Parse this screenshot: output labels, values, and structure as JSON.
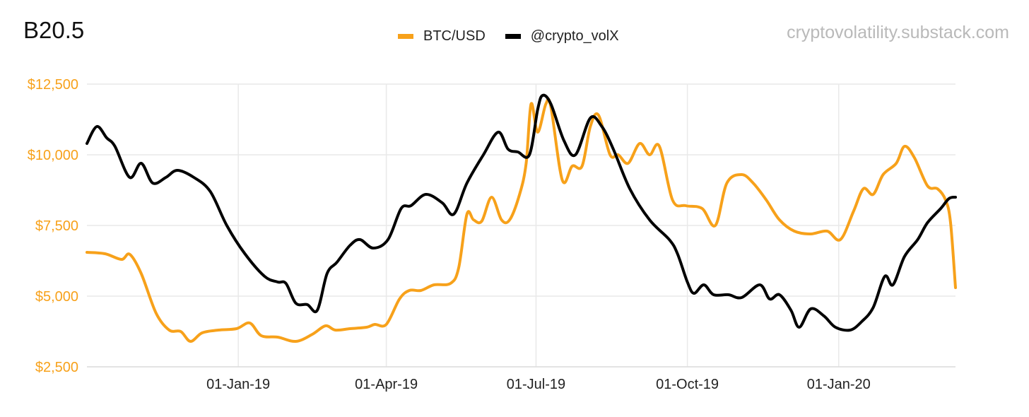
{
  "header": {
    "title": "B20.5",
    "watermark": "cryptovolatility.substack.com"
  },
  "colors": {
    "btc": "#f7a11a",
    "volx": "#000000",
    "grid": "#e9e9e9"
  },
  "chart_data": {
    "type": "line",
    "x_axis_type": "date",
    "x_ticks": [
      "01-Jan-19",
      "01-Apr-19",
      "01-Jul-19",
      "01-Oct-19",
      "01-Jan-20"
    ],
    "xlim": [
      "2018-10-01",
      "2020-03-12"
    ],
    "ylim": [
      2500,
      12500
    ],
    "y_ticks": [
      "$12,500",
      "$10,000",
      "$7,500",
      "$5,000",
      "$2,500"
    ],
    "y_tick_values": [
      12500,
      10000,
      7500,
      5000,
      2500
    ],
    "grid": true,
    "legend_position": "top-center",
    "series": [
      {
        "name": "BTC/USD",
        "color": "#f7a11a",
        "points": [
          [
            "2018-10-01",
            6550
          ],
          [
            "2018-10-12",
            6500
          ],
          [
            "2018-10-22",
            6300
          ],
          [
            "2018-10-27",
            6480
          ],
          [
            "2018-11-03",
            5800
          ],
          [
            "2018-11-12",
            4400
          ],
          [
            "2018-11-20",
            3800
          ],
          [
            "2018-11-27",
            3750
          ],
          [
            "2018-12-03",
            3400
          ],
          [
            "2018-12-10",
            3700
          ],
          [
            "2018-12-20",
            3800
          ],
          [
            "2018-12-31",
            3850
          ],
          [
            "2019-01-08",
            4050
          ],
          [
            "2019-01-15",
            3600
          ],
          [
            "2019-01-25",
            3550
          ],
          [
            "2019-02-05",
            3400
          ],
          [
            "2019-02-15",
            3650
          ],
          [
            "2019-02-23",
            3950
          ],
          [
            "2019-03-01",
            3800
          ],
          [
            "2019-03-10",
            3850
          ],
          [
            "2019-03-20",
            3900
          ],
          [
            "2019-03-25",
            4000
          ],
          [
            "2019-04-01",
            4000
          ],
          [
            "2019-04-09",
            4900
          ],
          [
            "2019-04-15",
            5200
          ],
          [
            "2019-04-22",
            5200
          ],
          [
            "2019-04-30",
            5400
          ],
          [
            "2019-05-10",
            5450
          ],
          [
            "2019-05-15",
            6000
          ],
          [
            "2019-05-20",
            7900
          ],
          [
            "2019-05-24",
            7700
          ],
          [
            "2019-05-29",
            7650
          ],
          [
            "2019-06-04",
            8500
          ],
          [
            "2019-06-10",
            7700
          ],
          [
            "2019-06-15",
            7700
          ],
          [
            "2019-06-21",
            8600
          ],
          [
            "2019-06-25",
            9700
          ],
          [
            "2019-06-28",
            11800
          ],
          [
            "2019-07-02",
            10800
          ],
          [
            "2019-07-07",
            11800
          ],
          [
            "2019-07-10",
            11700
          ],
          [
            "2019-07-17",
            9100
          ],
          [
            "2019-07-23",
            9600
          ],
          [
            "2019-07-29",
            9600
          ],
          [
            "2019-08-03",
            11000
          ],
          [
            "2019-08-08",
            11400
          ],
          [
            "2019-08-15",
            10000
          ],
          [
            "2019-08-20",
            10000
          ],
          [
            "2019-08-26",
            9700
          ],
          [
            "2019-09-02",
            10400
          ],
          [
            "2019-09-08",
            10000
          ],
          [
            "2019-09-14",
            10300
          ],
          [
            "2019-09-22",
            8400
          ],
          [
            "2019-09-30",
            8200
          ],
          [
            "2019-10-10",
            8100
          ],
          [
            "2019-10-18",
            7500
          ],
          [
            "2019-10-25",
            9000
          ],
          [
            "2019-11-03",
            9300
          ],
          [
            "2019-11-10",
            9000
          ],
          [
            "2019-11-18",
            8400
          ],
          [
            "2019-11-26",
            7700
          ],
          [
            "2019-12-05",
            7300
          ],
          [
            "2019-12-15",
            7200
          ],
          [
            "2019-12-25",
            7300
          ],
          [
            "2020-01-02",
            7000
          ],
          [
            "2020-01-10",
            8000
          ],
          [
            "2020-01-16",
            8800
          ],
          [
            "2020-01-22",
            8600
          ],
          [
            "2020-01-28",
            9300
          ],
          [
            "2020-02-05",
            9700
          ],
          [
            "2020-02-10",
            10300
          ],
          [
            "2020-02-16",
            9900
          ],
          [
            "2020-02-24",
            8900
          ],
          [
            "2020-03-01",
            8800
          ],
          [
            "2020-03-06",
            8400
          ],
          [
            "2020-03-09",
            7600
          ],
          [
            "2020-03-12",
            5300
          ]
        ]
      },
      {
        "name": "@crypto_volX",
        "color": "#000000",
        "points": [
          [
            "2018-10-01",
            10400
          ],
          [
            "2018-10-07",
            11000
          ],
          [
            "2018-10-13",
            10600
          ],
          [
            "2018-10-18",
            10300
          ],
          [
            "2018-10-27",
            9200
          ],
          [
            "2018-11-03",
            9700
          ],
          [
            "2018-11-10",
            9000
          ],
          [
            "2018-11-18",
            9200
          ],
          [
            "2018-11-25",
            9450
          ],
          [
            "2018-12-05",
            9200
          ],
          [
            "2018-12-15",
            8700
          ],
          [
            "2018-12-25",
            7500
          ],
          [
            "2019-01-05",
            6500
          ],
          [
            "2019-01-17",
            5700
          ],
          [
            "2019-01-25",
            5500
          ],
          [
            "2019-01-30",
            5450
          ],
          [
            "2019-02-05",
            4750
          ],
          [
            "2019-02-12",
            4700
          ],
          [
            "2019-02-18",
            4500
          ],
          [
            "2019-02-24",
            5800
          ],
          [
            "2019-03-02",
            6200
          ],
          [
            "2019-03-10",
            6800
          ],
          [
            "2019-03-16",
            7000
          ],
          [
            "2019-03-24",
            6700
          ],
          [
            "2019-04-02",
            7000
          ],
          [
            "2019-04-10",
            8100
          ],
          [
            "2019-04-16",
            8200
          ],
          [
            "2019-04-25",
            8600
          ],
          [
            "2019-05-05",
            8300
          ],
          [
            "2019-05-12",
            7900
          ],
          [
            "2019-05-20",
            9000
          ],
          [
            "2019-05-30",
            10000
          ],
          [
            "2019-06-08",
            10800
          ],
          [
            "2019-06-14",
            10200
          ],
          [
            "2019-06-20",
            10100
          ],
          [
            "2019-06-27",
            10000
          ],
          [
            "2019-07-02",
            11600
          ],
          [
            "2019-07-05",
            12100
          ],
          [
            "2019-07-10",
            11800
          ],
          [
            "2019-07-18",
            10500
          ],
          [
            "2019-07-25",
            10000
          ],
          [
            "2019-08-03",
            11300
          ],
          [
            "2019-08-10",
            11000
          ],
          [
            "2019-08-17",
            10200
          ],
          [
            "2019-08-27",
            8800
          ],
          [
            "2019-09-08",
            7700
          ],
          [
            "2019-09-20",
            7000
          ],
          [
            "2019-09-25",
            6500
          ],
          [
            "2019-10-01",
            5500
          ],
          [
            "2019-10-05",
            5100
          ],
          [
            "2019-10-11",
            5400
          ],
          [
            "2019-10-17",
            5050
          ],
          [
            "2019-10-26",
            5050
          ],
          [
            "2019-11-03",
            4950
          ],
          [
            "2019-11-14",
            5400
          ],
          [
            "2019-11-20",
            4900
          ],
          [
            "2019-11-26",
            5050
          ],
          [
            "2019-12-03",
            4500
          ],
          [
            "2019-12-08",
            3900
          ],
          [
            "2019-12-15",
            4550
          ],
          [
            "2019-12-23",
            4300
          ],
          [
            "2019-12-30",
            3900
          ],
          [
            "2020-01-08",
            3800
          ],
          [
            "2020-01-15",
            4100
          ],
          [
            "2020-01-22",
            4600
          ],
          [
            "2020-01-29",
            5700
          ],
          [
            "2020-02-03",
            5400
          ],
          [
            "2020-02-10",
            6400
          ],
          [
            "2020-02-18",
            7000
          ],
          [
            "2020-02-24",
            7600
          ],
          [
            "2020-03-03",
            8100
          ],
          [
            "2020-03-08",
            8450
          ],
          [
            "2020-03-12",
            8500
          ]
        ]
      }
    ]
  }
}
